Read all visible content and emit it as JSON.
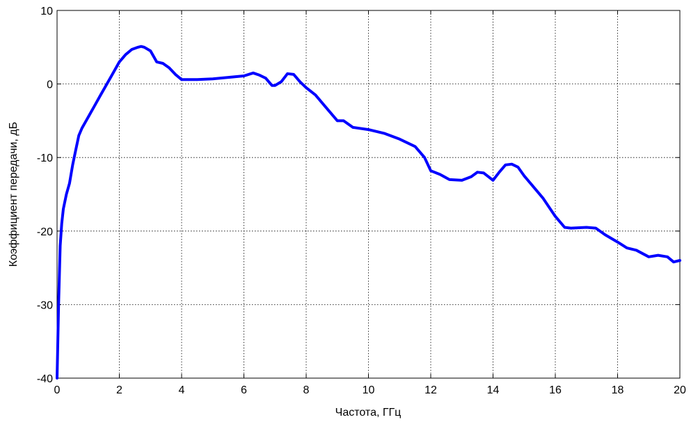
{
  "chart_data": {
    "type": "line",
    "xlabel": "Частота, ГГц",
    "ylabel": "Коэффициент передачи, дБ",
    "xlim": [
      0,
      20
    ],
    "ylim": [
      -40,
      10
    ],
    "xticks": [
      0,
      2,
      4,
      6,
      8,
      10,
      12,
      14,
      16,
      18,
      20
    ],
    "yticks": [
      -40,
      -30,
      -20,
      -10,
      0,
      10
    ],
    "grid": true,
    "series": [
      {
        "color": "#0000ff",
        "x": [
          0.0,
          0.02,
          0.05,
          0.1,
          0.15,
          0.2,
          0.3,
          0.4,
          0.5,
          0.6,
          0.7,
          0.8,
          1.0,
          1.2,
          1.4,
          1.6,
          1.8,
          2.0,
          2.2,
          2.4,
          2.6,
          2.7,
          2.8,
          3.0,
          3.2,
          3.4,
          3.6,
          3.8,
          4.0,
          4.2,
          4.5,
          5.0,
          5.5,
          6.0,
          6.3,
          6.5,
          6.7,
          6.9,
          7.0,
          7.2,
          7.4,
          7.6,
          7.8,
          8.0,
          8.3,
          8.6,
          9.0,
          9.2,
          9.5,
          10.0,
          10.5,
          11.0,
          11.5,
          11.8,
          12.0,
          12.3,
          12.6,
          13.0,
          13.3,
          13.5,
          13.7,
          14.0,
          14.2,
          14.4,
          14.6,
          14.8,
          15.0,
          15.3,
          15.6,
          16.0,
          16.3,
          16.5,
          17.0,
          17.3,
          17.6,
          18.0,
          18.3,
          18.6,
          19.0,
          19.3,
          19.6,
          19.8,
          20.0
        ],
        "y": [
          -40,
          -36,
          -30,
          -22,
          -19,
          -17,
          -15,
          -13.5,
          -11,
          -9,
          -7,
          -6,
          -4.5,
          -3,
          -1.5,
          0,
          1.5,
          3,
          4,
          4.7,
          5,
          5.1,
          5,
          4.5,
          3,
          2.8,
          2.2,
          1.3,
          0.6,
          0.6,
          0.6,
          0.7,
          0.9,
          1.1,
          1.5,
          1.2,
          0.8,
          -0.2,
          -0.2,
          0.3,
          1.4,
          1.3,
          0.3,
          -0.5,
          -1.5,
          -3,
          -5,
          -5,
          -5.9,
          -6.2,
          -6.7,
          -7.5,
          -8.5,
          -10,
          -11.8,
          -12.3,
          -13,
          -13.1,
          -12.6,
          -12,
          -12.1,
          -13.1,
          -12,
          -11,
          -10.9,
          -11.3,
          -12.5,
          -14,
          -15.5,
          -18,
          -19.5,
          -19.6,
          -19.5,
          -19.6,
          -20.5,
          -21.5,
          -22.3,
          -22.6,
          -23.5,
          -23.3,
          -23.5,
          -24.2,
          -24
        ]
      }
    ]
  }
}
